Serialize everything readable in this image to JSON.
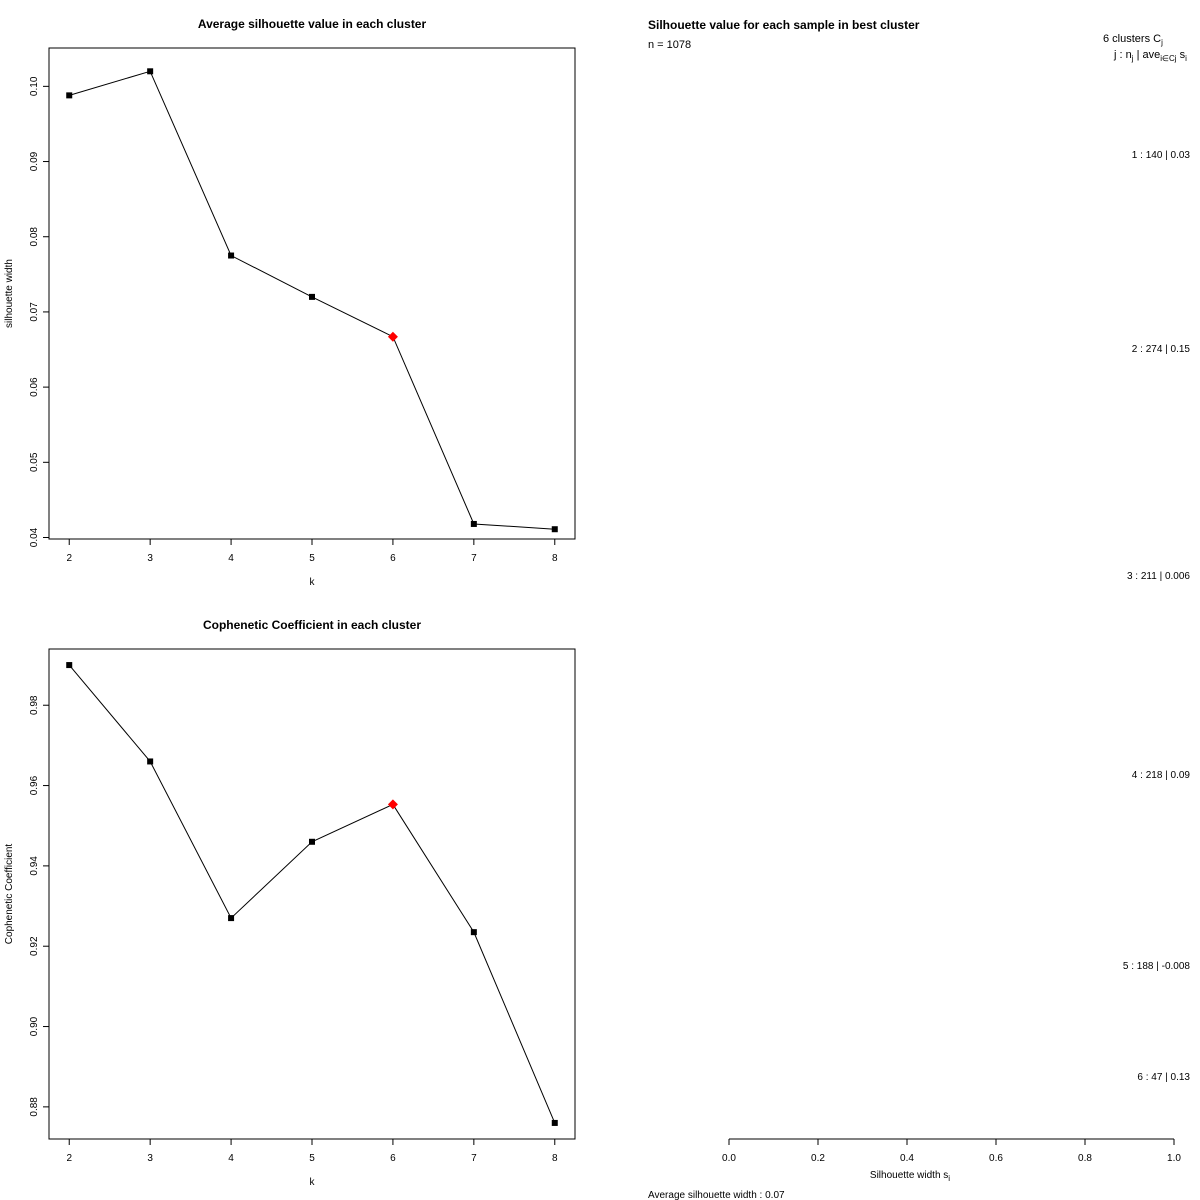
{
  "chart_data": [
    {
      "type": "line",
      "title": "Average silhouette value in each cluster",
      "xlabel": "k",
      "ylabel": "silhouette width",
      "x": [
        2,
        3,
        4,
        5,
        6,
        7,
        8
      ],
      "y": [
        0.0988,
        0.102,
        0.0775,
        0.072,
        0.0667,
        0.0418,
        0.0411
      ],
      "highlight_k": 6,
      "highlight_color": "#ff0000",
      "marker_color": "#000000",
      "xticks": [
        "2",
        "3",
        "4",
        "5",
        "6",
        "7",
        "8"
      ],
      "yticks": [
        "0.04",
        "0.05",
        "0.06",
        "0.07",
        "0.08",
        "0.09",
        "0.10"
      ],
      "ylim": [
        0.0398,
        0.1051
      ]
    },
    {
      "type": "line",
      "title": "Cophenetic Coefficient in each cluster",
      "xlabel": "k",
      "ylabel": "Cophenetic Coefficient",
      "x": [
        2,
        3,
        4,
        5,
        6,
        7,
        8
      ],
      "y": [
        0.99,
        0.966,
        0.927,
        0.946,
        0.9553,
        0.9235,
        0.876
      ],
      "highlight_k": 6,
      "highlight_color": "#ff0000",
      "marker_color": "#000000",
      "xticks": [
        "2",
        "3",
        "4",
        "5",
        "6",
        "7",
        "8"
      ],
      "yticks": [
        "0.88",
        "0.90",
        "0.92",
        "0.94",
        "0.96",
        "0.98"
      ],
      "ylim": [
        0.872,
        0.994
      ]
    },
    {
      "type": "bar",
      "title": "Silhouette value for each sample in best cluster",
      "n_text": "n = 1078",
      "header_line1": "6  clusters  C",
      "header_line1_sub": "j",
      "header_line2": "j :  n",
      "header_line2_sub": "j",
      "header_line2_rest": " | ave",
      "header_line2_rest_sub": "i∈Cj",
      "header_line2_tail": " s",
      "header_line2_tail_sub": "i",
      "clusters": [
        {
          "label": "1 :   140  |  0.03"
        },
        {
          "label": "2 :   274  |  0.15"
        },
        {
          "label": "3 :   211  |  0.006"
        },
        {
          "label": "4 :   218  |  0.09"
        },
        {
          "label": "5 :   188  |  -0.008"
        },
        {
          "label": "6 :   47  |  0.13"
        }
      ],
      "xlabel": "Silhouette width s",
      "xlabel_sub": "i",
      "xticks": [
        "0.0",
        "0.2",
        "0.4",
        "0.6",
        "0.8",
        "1.0"
      ],
      "xlim": [
        0,
        1
      ],
      "footer": "Average silhouette width :  0.07"
    }
  ]
}
